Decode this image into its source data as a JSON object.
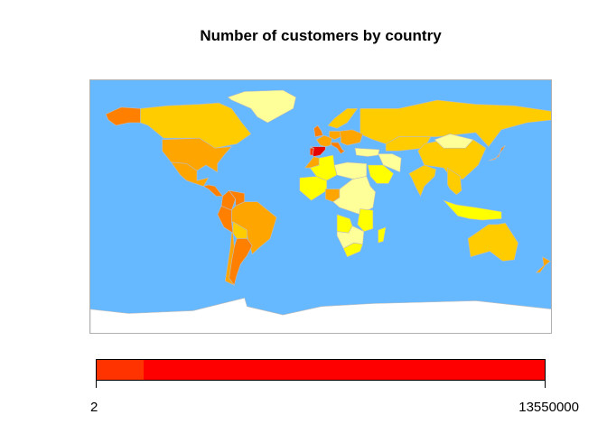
{
  "chart_data": {
    "type": "choropleth-map",
    "title": "Number of customers by country",
    "ocean_color": "#66b8ff",
    "land_no_data_color": "#ffffff",
    "border_color": "#bdbdbd",
    "palette_levels": [
      {
        "color": "#ffff99"
      },
      {
        "color": "#ffff00"
      },
      {
        "color": "#ffcc00"
      },
      {
        "color": "#ffa500"
      },
      {
        "color": "#ff8000"
      },
      {
        "color": "#ff3300"
      },
      {
        "color": "#ff0000"
      },
      {
        "color": "#e60000"
      }
    ],
    "countries": [
      {
        "name": "Spain",
        "level": 7
      },
      {
        "name": "Portugal",
        "level": 5
      },
      {
        "name": "United States",
        "level": 3
      },
      {
        "name": "Canada",
        "level": 2
      },
      {
        "name": "Alaska",
        "level": 4
      },
      {
        "name": "Greenland",
        "level": 0
      },
      {
        "name": "Mexico",
        "level": 3
      },
      {
        "name": "Brazil",
        "level": 3
      },
      {
        "name": "Argentina",
        "level": 4
      },
      {
        "name": "Peru",
        "level": 4
      },
      {
        "name": "Colombia",
        "level": 4
      },
      {
        "name": "Venezuela",
        "level": 4
      },
      {
        "name": "Chile",
        "level": 3
      },
      {
        "name": "Russia",
        "level": 2
      },
      {
        "name": "China",
        "level": 2
      },
      {
        "name": "Australia",
        "level": 2
      },
      {
        "name": "India",
        "level": 2
      },
      {
        "name": "Kazakhstan",
        "level": 2
      },
      {
        "name": "Algeria",
        "level": 1
      },
      {
        "name": "Nigeria",
        "level": 3
      },
      {
        "name": "Angola",
        "level": 1
      },
      {
        "name": "South Africa",
        "level": 1
      },
      {
        "name": "Saudi Arabia",
        "level": 1
      },
      {
        "name": "Iran",
        "level": 0
      },
      {
        "name": "Morocco",
        "level": 3
      },
      {
        "name": "Italy",
        "level": 4
      },
      {
        "name": "France",
        "level": 3
      },
      {
        "name": "Germany",
        "level": 3
      },
      {
        "name": "United Kingdom",
        "level": 4
      },
      {
        "name": "Japan",
        "level": 4
      },
      {
        "name": "New Zealand",
        "level": 3
      }
    ],
    "legend": {
      "min_label": "2",
      "max_label": "13550000",
      "segments": [
        {
          "color": "#ff3300",
          "fraction": 0.104
        },
        {
          "color": "#ff0000",
          "fraction": 0.896
        }
      ]
    }
  }
}
